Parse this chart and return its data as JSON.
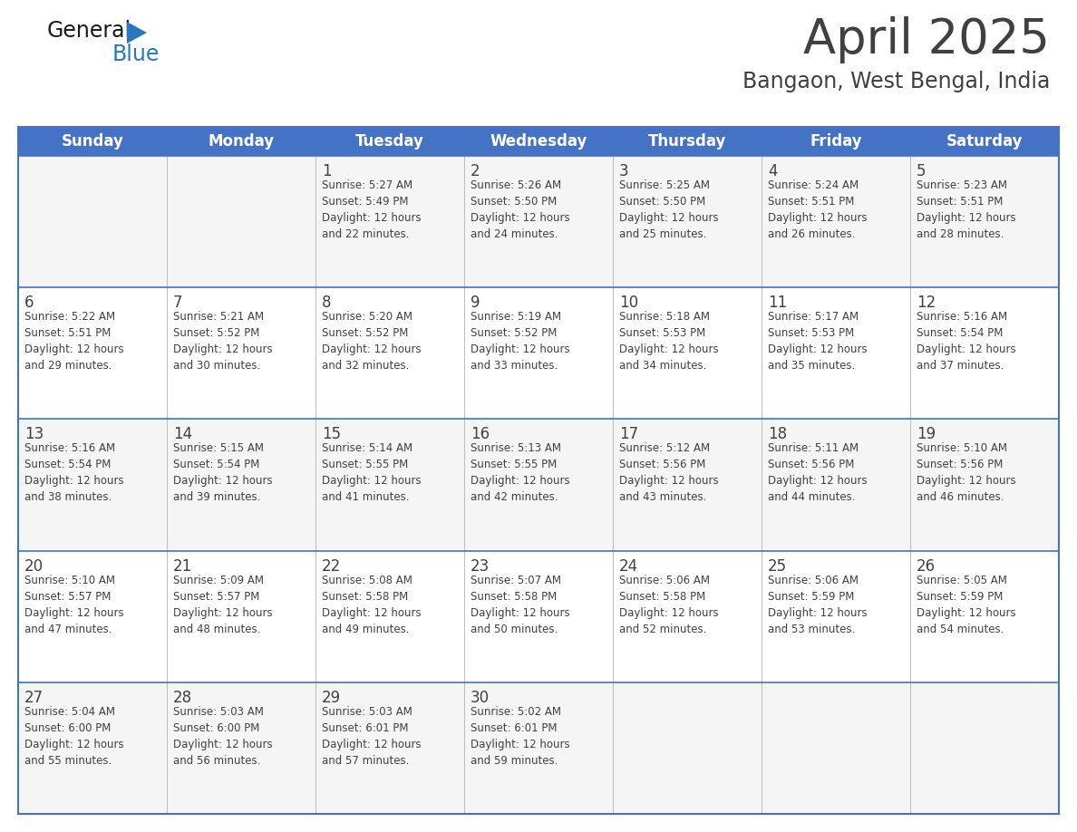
{
  "title": "April 2025",
  "subtitle": "Bangaon, West Bengal, India",
  "header_bg": "#4472C4",
  "header_text_color": "#FFFFFF",
  "border_color": "#4472C4",
  "row_line_color": "#4472C4",
  "text_color": "#404040",
  "cell_bg_odd": "#F5F5F5",
  "cell_bg_even": "#FFFFFF",
  "days_of_week": [
    "Sunday",
    "Monday",
    "Tuesday",
    "Wednesday",
    "Thursday",
    "Friday",
    "Saturday"
  ],
  "calendar_data": [
    [
      {
        "day": "",
        "info": ""
      },
      {
        "day": "",
        "info": ""
      },
      {
        "day": "1",
        "info": "Sunrise: 5:27 AM\nSunset: 5:49 PM\nDaylight: 12 hours\nand 22 minutes."
      },
      {
        "day": "2",
        "info": "Sunrise: 5:26 AM\nSunset: 5:50 PM\nDaylight: 12 hours\nand 24 minutes."
      },
      {
        "day": "3",
        "info": "Sunrise: 5:25 AM\nSunset: 5:50 PM\nDaylight: 12 hours\nand 25 minutes."
      },
      {
        "day": "4",
        "info": "Sunrise: 5:24 AM\nSunset: 5:51 PM\nDaylight: 12 hours\nand 26 minutes."
      },
      {
        "day": "5",
        "info": "Sunrise: 5:23 AM\nSunset: 5:51 PM\nDaylight: 12 hours\nand 28 minutes."
      }
    ],
    [
      {
        "day": "6",
        "info": "Sunrise: 5:22 AM\nSunset: 5:51 PM\nDaylight: 12 hours\nand 29 minutes."
      },
      {
        "day": "7",
        "info": "Sunrise: 5:21 AM\nSunset: 5:52 PM\nDaylight: 12 hours\nand 30 minutes."
      },
      {
        "day": "8",
        "info": "Sunrise: 5:20 AM\nSunset: 5:52 PM\nDaylight: 12 hours\nand 32 minutes."
      },
      {
        "day": "9",
        "info": "Sunrise: 5:19 AM\nSunset: 5:52 PM\nDaylight: 12 hours\nand 33 minutes."
      },
      {
        "day": "10",
        "info": "Sunrise: 5:18 AM\nSunset: 5:53 PM\nDaylight: 12 hours\nand 34 minutes."
      },
      {
        "day": "11",
        "info": "Sunrise: 5:17 AM\nSunset: 5:53 PM\nDaylight: 12 hours\nand 35 minutes."
      },
      {
        "day": "12",
        "info": "Sunrise: 5:16 AM\nSunset: 5:54 PM\nDaylight: 12 hours\nand 37 minutes."
      }
    ],
    [
      {
        "day": "13",
        "info": "Sunrise: 5:16 AM\nSunset: 5:54 PM\nDaylight: 12 hours\nand 38 minutes."
      },
      {
        "day": "14",
        "info": "Sunrise: 5:15 AM\nSunset: 5:54 PM\nDaylight: 12 hours\nand 39 minutes."
      },
      {
        "day": "15",
        "info": "Sunrise: 5:14 AM\nSunset: 5:55 PM\nDaylight: 12 hours\nand 41 minutes."
      },
      {
        "day": "16",
        "info": "Sunrise: 5:13 AM\nSunset: 5:55 PM\nDaylight: 12 hours\nand 42 minutes."
      },
      {
        "day": "17",
        "info": "Sunrise: 5:12 AM\nSunset: 5:56 PM\nDaylight: 12 hours\nand 43 minutes."
      },
      {
        "day": "18",
        "info": "Sunrise: 5:11 AM\nSunset: 5:56 PM\nDaylight: 12 hours\nand 44 minutes."
      },
      {
        "day": "19",
        "info": "Sunrise: 5:10 AM\nSunset: 5:56 PM\nDaylight: 12 hours\nand 46 minutes."
      }
    ],
    [
      {
        "day": "20",
        "info": "Sunrise: 5:10 AM\nSunset: 5:57 PM\nDaylight: 12 hours\nand 47 minutes."
      },
      {
        "day": "21",
        "info": "Sunrise: 5:09 AM\nSunset: 5:57 PM\nDaylight: 12 hours\nand 48 minutes."
      },
      {
        "day": "22",
        "info": "Sunrise: 5:08 AM\nSunset: 5:58 PM\nDaylight: 12 hours\nand 49 minutes."
      },
      {
        "day": "23",
        "info": "Sunrise: 5:07 AM\nSunset: 5:58 PM\nDaylight: 12 hours\nand 50 minutes."
      },
      {
        "day": "24",
        "info": "Sunrise: 5:06 AM\nSunset: 5:58 PM\nDaylight: 12 hours\nand 52 minutes."
      },
      {
        "day": "25",
        "info": "Sunrise: 5:06 AM\nSunset: 5:59 PM\nDaylight: 12 hours\nand 53 minutes."
      },
      {
        "day": "26",
        "info": "Sunrise: 5:05 AM\nSunset: 5:59 PM\nDaylight: 12 hours\nand 54 minutes."
      }
    ],
    [
      {
        "day": "27",
        "info": "Sunrise: 5:04 AM\nSunset: 6:00 PM\nDaylight: 12 hours\nand 55 minutes."
      },
      {
        "day": "28",
        "info": "Sunrise: 5:03 AM\nSunset: 6:00 PM\nDaylight: 12 hours\nand 56 minutes."
      },
      {
        "day": "29",
        "info": "Sunrise: 5:03 AM\nSunset: 6:01 PM\nDaylight: 12 hours\nand 57 minutes."
      },
      {
        "day": "30",
        "info": "Sunrise: 5:02 AM\nSunset: 6:01 PM\nDaylight: 12 hours\nand 59 minutes."
      },
      {
        "day": "",
        "info": ""
      },
      {
        "day": "",
        "info": ""
      },
      {
        "day": "",
        "info": ""
      }
    ]
  ],
  "logo_text_general": "General",
  "logo_text_blue": "Blue",
  "logo_color_general": "#1a1a1a",
  "logo_color_blue": "#2878BE",
  "logo_triangle_color": "#2878BE",
  "title_fontsize": 38,
  "subtitle_fontsize": 17,
  "header_fontsize": 12,
  "day_num_fontsize": 12,
  "info_fontsize": 8.5
}
